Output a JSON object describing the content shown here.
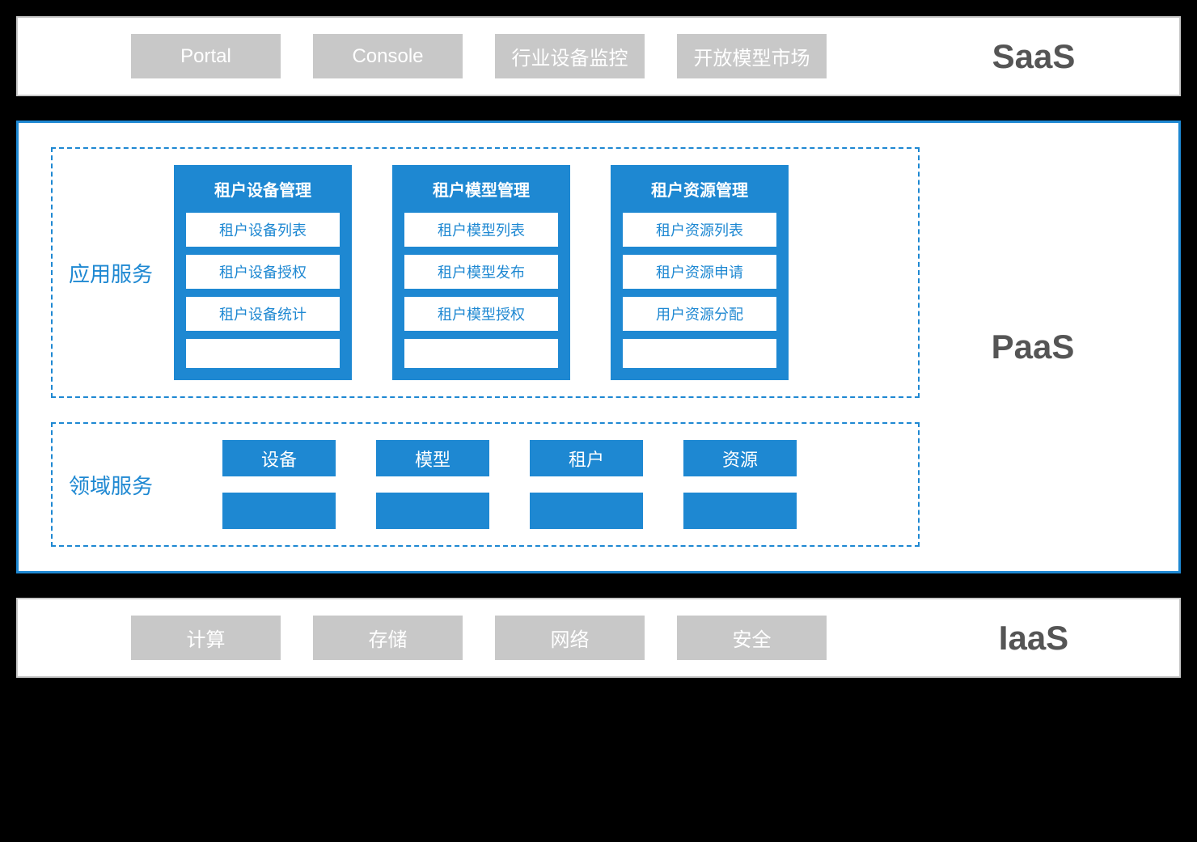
{
  "colors": {
    "background": "#000000",
    "layer_bg": "#ffffff",
    "gray_border": "#c8c8c8",
    "blue_primary": "#1e88d2",
    "gray_box": "#c8c8c8",
    "label_text": "#555555"
  },
  "layers": {
    "saas": {
      "label": "SaaS",
      "boxes": [
        "Portal",
        "Console",
        "行业设备监控",
        "开放模型市场"
      ]
    },
    "paas": {
      "label": "PaaS",
      "app_service": {
        "title": "应用服务",
        "cards": [
          {
            "title": "租户设备管理",
            "items": [
              "租户设备列表",
              "租户设备授权",
              "租户设备统计",
              ""
            ]
          },
          {
            "title": "租户模型管理",
            "items": [
              "租户模型列表",
              "租户模型发布",
              "租户模型授权",
              ""
            ]
          },
          {
            "title": "租户资源管理",
            "items": [
              "租户资源列表",
              "租户资源申请",
              "用户资源分配",
              ""
            ]
          }
        ]
      },
      "domain_service": {
        "title": "领域服务",
        "row1": [
          "设备",
          "模型",
          "租户",
          "资源"
        ],
        "row2": [
          "",
          "",
          "",
          ""
        ]
      }
    },
    "iaas": {
      "label": "IaaS",
      "boxes": [
        "计算",
        "存储",
        "网络",
        "安全"
      ]
    }
  }
}
